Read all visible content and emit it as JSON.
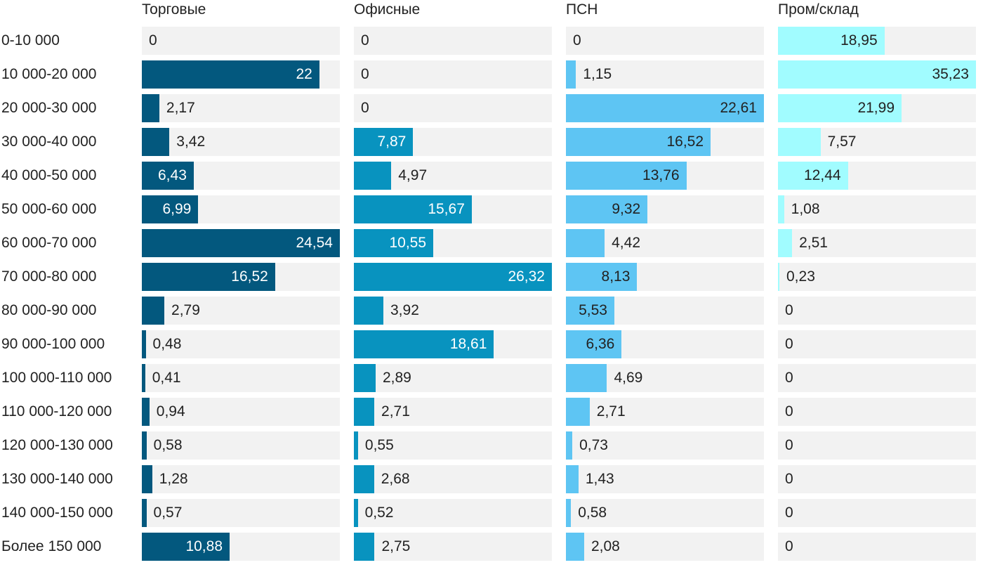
{
  "chart_data": {
    "type": "bar",
    "orientation": "horizontal",
    "layout": "small-multiples",
    "categories": [
      "0-10 000",
      "10 000-20 000",
      "20 000-30 000",
      "30 000-40 000",
      "40 000-50 000",
      "50 000-60 000",
      "60 000-70 000",
      "70 000-80 000",
      "80 000-90 000",
      "90 000-100 000",
      "100 000-110 000",
      "110 000-120 000",
      "120 000-130 000",
      "130 000-140 000",
      "140 000-150 000",
      "Более 150 000"
    ],
    "series": [
      {
        "name": "Торговые",
        "color": "#03587e",
        "values": [
          0,
          22,
          2.17,
          3.42,
          6.43,
          6.99,
          24.54,
          16.52,
          2.79,
          0.48,
          0.41,
          0.94,
          0.58,
          1.28,
          0.57,
          10.88
        ],
        "labels": [
          "0",
          "22",
          "2,17",
          "3,42",
          "6,43",
          "6,99",
          "24,54",
          "16,52",
          "2,79",
          "0,48",
          "0,41",
          "0,94",
          "0,58",
          "1,28",
          "0,57",
          "10,88"
        ]
      },
      {
        "name": "Офисные",
        "color": "#0893bf",
        "values": [
          0,
          0,
          0,
          7.87,
          4.97,
          15.67,
          10.55,
          26.32,
          3.92,
          18.61,
          2.89,
          2.71,
          0.55,
          2.68,
          0.52,
          2.75
        ],
        "labels": [
          "0",
          "0",
          "0",
          "7,87",
          "4,97",
          "15,67",
          "10,55",
          "26,32",
          "3,92",
          "18,61",
          "2,89",
          "2,71",
          "0,55",
          "2,68",
          "0,52",
          "2,75"
        ]
      },
      {
        "name": "ПСН",
        "color": "#5ec5f3",
        "values": [
          0,
          1.15,
          22.61,
          16.52,
          13.76,
          9.32,
          4.42,
          8.13,
          5.53,
          6.36,
          4.69,
          2.71,
          0.73,
          1.43,
          0.58,
          2.08
        ],
        "labels": [
          "0",
          "1,15",
          "22,61",
          "16,52",
          "13,76",
          "9,32",
          "4,42",
          "8,13",
          "5,53",
          "6,36",
          "4,69",
          "2,71",
          "0,73",
          "1,43",
          "0,58",
          "2,08"
        ]
      },
      {
        "name": "Пром/склад",
        "color": "#a1fcff",
        "values": [
          18.95,
          35.23,
          21.99,
          7.57,
          12.44,
          1.08,
          2.51,
          0.23,
          0,
          0,
          0,
          0,
          0,
          0,
          0,
          0
        ],
        "labels": [
          "18,95",
          "35,23",
          "21,99",
          "7,57",
          "12,44",
          "1,08",
          "2,51",
          "0,23",
          "0",
          "0",
          "0",
          "0",
          "0",
          "0",
          "0",
          "0"
        ]
      }
    ],
    "value_labels": "on-bars",
    "track_background": "#f2f2f2",
    "inside_label_color": "#ffffff",
    "outside_label_color": "#222222"
  }
}
